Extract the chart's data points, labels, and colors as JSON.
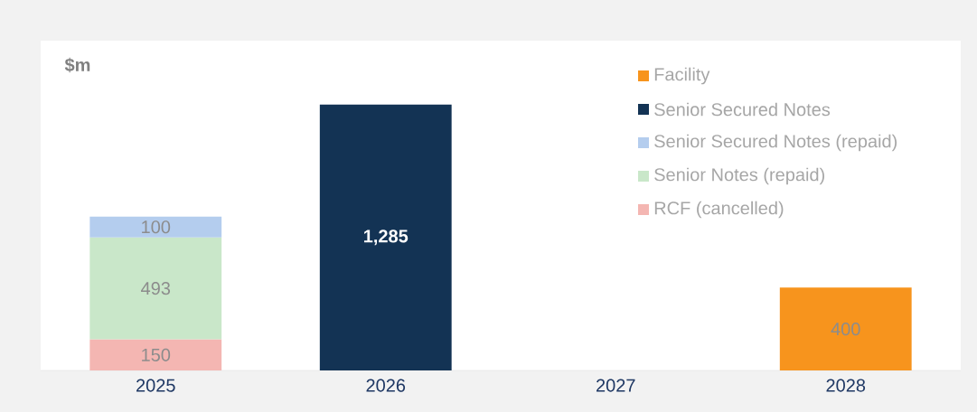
{
  "chart_data": {
    "type": "bar",
    "stacked": true,
    "ylabel": "$m",
    "categories": [
      "2025",
      "2026",
      "2027",
      "2028"
    ],
    "series": [
      {
        "name": "RCF (cancelled)",
        "color": "#f4b6b2",
        "values": [
          150,
          null,
          null,
          null
        ],
        "value_labels": [
          "150",
          null,
          null,
          null
        ]
      },
      {
        "name": "Senior Notes (repaid)",
        "color": "#c9e7c9",
        "values": [
          493,
          null,
          null,
          null
        ],
        "value_labels": [
          "493",
          null,
          null,
          null
        ]
      },
      {
        "name": "Senior Secured Notes (repaid)",
        "color": "#b4cdee",
        "values": [
          100,
          null,
          null,
          null
        ],
        "value_labels": [
          "100",
          null,
          null,
          null
        ]
      },
      {
        "name": "Senior Secured Notes",
        "color": "#133354",
        "values": [
          null,
          1285,
          null,
          null
        ],
        "value_labels": [
          null,
          "1,285",
          null,
          null
        ]
      },
      {
        "name": "Facility",
        "color": "#f7941d",
        "values": [
          null,
          null,
          null,
          400
        ],
        "value_labels": [
          null,
          null,
          null,
          "400"
        ]
      }
    ],
    "legend": "top right",
    "grid": false
  }
}
